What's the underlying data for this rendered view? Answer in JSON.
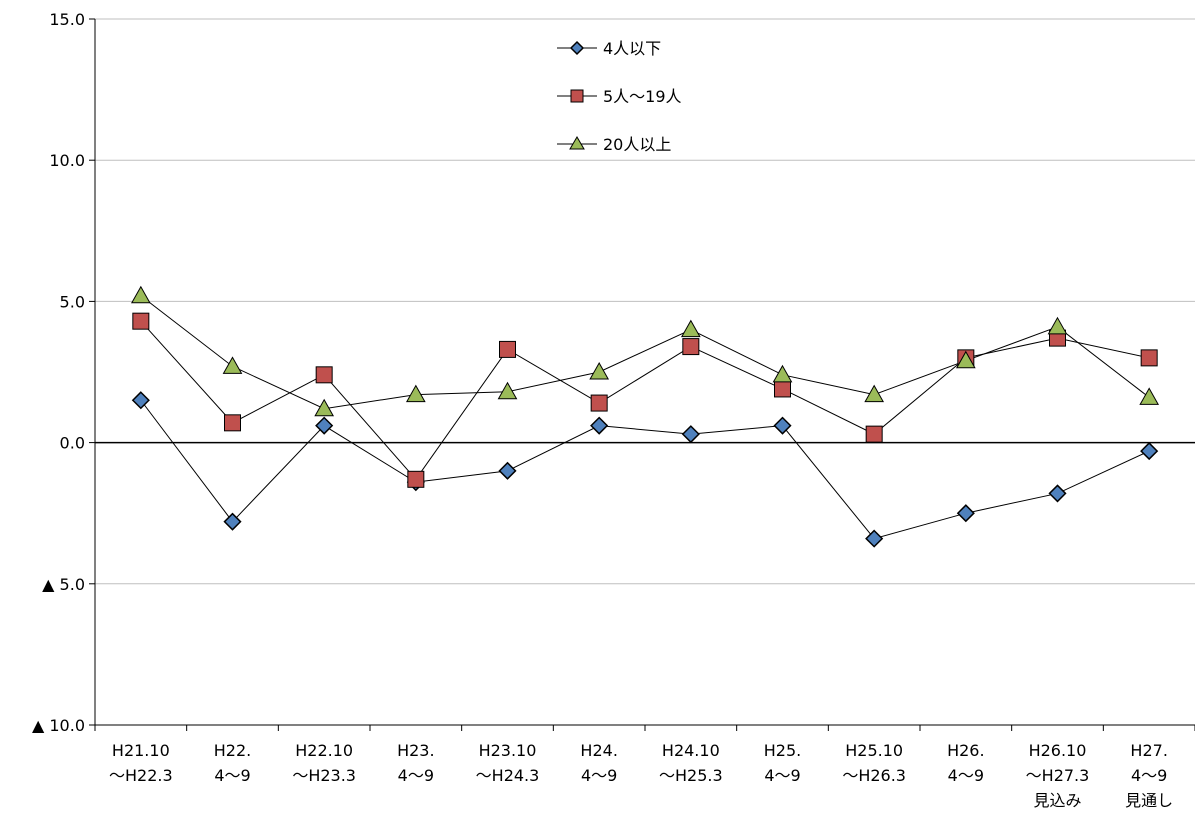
{
  "chart_data": {
    "type": "line",
    "title": "",
    "xlabel": "",
    "ylabel": "",
    "ylim": [
      -10,
      15
    ],
    "y_ticks": [
      {
        "value": 15,
        "label": "15.0"
      },
      {
        "value": 10,
        "label": "10.0"
      },
      {
        "value": 5,
        "label": "5.0"
      },
      {
        "value": 0,
        "label": "0.0"
      },
      {
        "value": -5,
        "label": "▲ 5.0"
      },
      {
        "value": -10,
        "label": "▲ 10.0"
      }
    ],
    "grid": true,
    "legend_position": "top-center",
    "categories": [
      [
        "H21.10",
        "～H22.3"
      ],
      [
        "H22.",
        "4～9"
      ],
      [
        "H22.10",
        "～H23.3"
      ],
      [
        "H23.",
        "4～9"
      ],
      [
        "H23.10",
        "～H24.3"
      ],
      [
        "H24.",
        "4～9"
      ],
      [
        "H24.10",
        "～H25.3"
      ],
      [
        "H25.",
        "4～9"
      ],
      [
        "H25.10",
        "～H26.3"
      ],
      [
        "H26.",
        "4～9"
      ],
      [
        "H26.10",
        "～H27.3",
        "見込み"
      ],
      [
        "H27.",
        "4～9",
        "見通し"
      ]
    ],
    "series": [
      {
        "name": "4人以下",
        "marker": "diamond",
        "color": "#4F81BD",
        "values": [
          1.5,
          -2.8,
          0.6,
          -1.4,
          -1.0,
          0.6,
          0.3,
          0.6,
          -3.4,
          -2.5,
          -1.8,
          -0.3
        ]
      },
      {
        "name": "5人～19人",
        "marker": "square",
        "color": "#C0504D",
        "values": [
          4.3,
          0.7,
          2.4,
          -1.3,
          3.3,
          1.4,
          3.4,
          1.9,
          0.3,
          3.0,
          3.7,
          3.0
        ]
      },
      {
        "name": "20人以上",
        "marker": "triangle",
        "color": "#9BBB59",
        "values": [
          5.2,
          2.7,
          1.2,
          1.7,
          1.8,
          2.5,
          4.0,
          2.4,
          1.7,
          2.9,
          4.1,
          1.6
        ]
      }
    ]
  }
}
